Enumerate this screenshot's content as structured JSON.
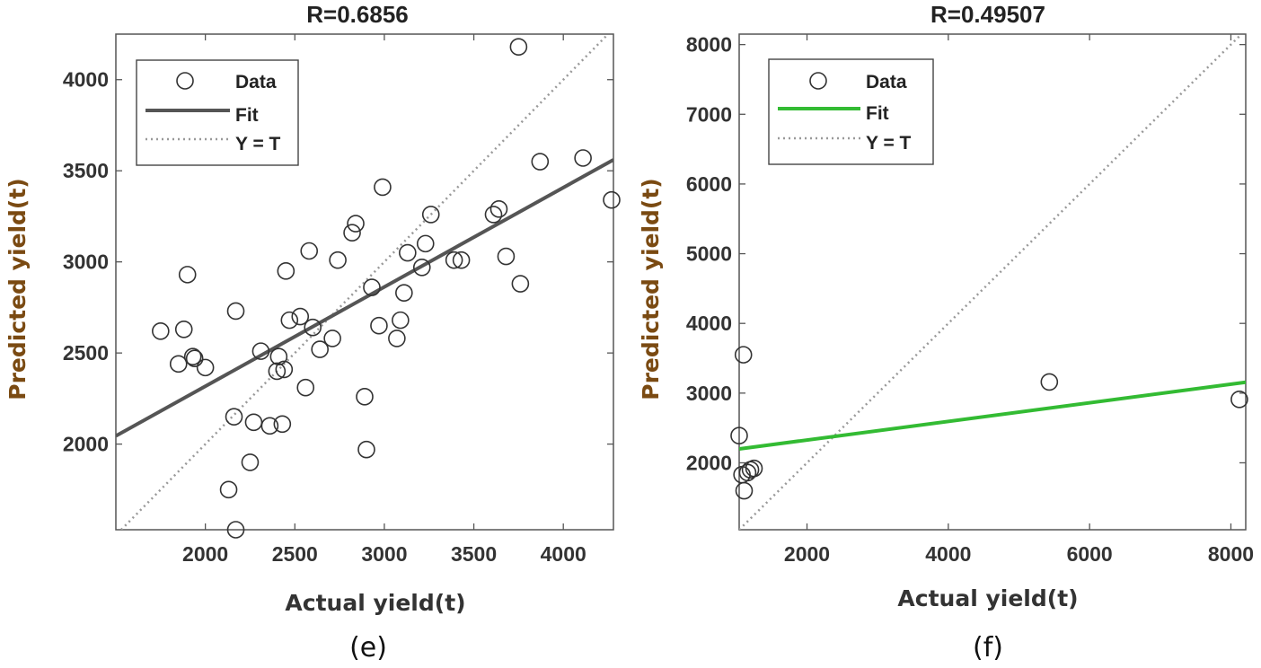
{
  "chart_data": [
    {
      "type": "scatter",
      "caption": "(e)",
      "title": "R=0.6856",
      "xlabel": "Actual yield(t)",
      "ylabel": "Predicted yield(t)",
      "xlim": [
        1500,
        4280
      ],
      "ylim": [
        1530,
        4250
      ],
      "xticks": [
        2000,
        2500,
        3000,
        3500,
        4000
      ],
      "yticks": [
        2000,
        2500,
        3000,
        3500,
        4000
      ],
      "legend": {
        "position": "top-left",
        "entries": [
          {
            "label": "Data",
            "style": "circle"
          },
          {
            "label": "Fit",
            "style": "solid-line"
          },
          {
            "label": "Y = T",
            "style": "dotted-line"
          }
        ]
      },
      "fit": {
        "slope": 0.5452,
        "intercept": 1227,
        "color": "#555555"
      },
      "identity": {
        "color": "#999999"
      },
      "points": [
        [
          1750,
          2620
        ],
        [
          1850,
          2440
        ],
        [
          1880,
          2630
        ],
        [
          1900,
          2930
        ],
        [
          1930,
          2480
        ],
        [
          1940,
          2470
        ],
        [
          2000,
          2420
        ],
        [
          2130,
          1750
        ],
        [
          2160,
          2150
        ],
        [
          2170,
          1530
        ],
        [
          2170,
          2730
        ],
        [
          2250,
          1900
        ],
        [
          2270,
          2120
        ],
        [
          2310,
          2510
        ],
        [
          2360,
          2100
        ],
        [
          2400,
          2400
        ],
        [
          2410,
          2480
        ],
        [
          2430,
          2110
        ],
        [
          2440,
          2410
        ],
        [
          2450,
          2950
        ],
        [
          2470,
          2680
        ],
        [
          2530,
          2700
        ],
        [
          2560,
          2310
        ],
        [
          2580,
          3060
        ],
        [
          2600,
          2640
        ],
        [
          2640,
          2520
        ],
        [
          2710,
          2580
        ],
        [
          2740,
          3010
        ],
        [
          2820,
          3160
        ],
        [
          2840,
          3210
        ],
        [
          2890,
          2260
        ],
        [
          2900,
          1970
        ],
        [
          2930,
          2860
        ],
        [
          2970,
          2650
        ],
        [
          2990,
          3410
        ],
        [
          3070,
          2580
        ],
        [
          3090,
          2680
        ],
        [
          3110,
          2830
        ],
        [
          3130,
          3050
        ],
        [
          3210,
          2970
        ],
        [
          3230,
          3100
        ],
        [
          3260,
          3260
        ],
        [
          3390,
          3010
        ],
        [
          3430,
          3010
        ],
        [
          3610,
          3260
        ],
        [
          3640,
          3290
        ],
        [
          3680,
          3030
        ],
        [
          3760,
          2880
        ],
        [
          3750,
          4180
        ],
        [
          3870,
          3550
        ],
        [
          4110,
          3570
        ],
        [
          4270,
          3340
        ]
      ]
    },
    {
      "type": "scatter",
      "caption": "(f)",
      "title": "R=0.49507",
      "xlabel": "Actual yield(t)",
      "ylabel": "Predicted yield(t)",
      "xlim": [
        1040,
        8210
      ],
      "ylim": [
        1040,
        8150
      ],
      "xticks": [
        2000,
        4000,
        6000,
        8000
      ],
      "yticks": [
        2000,
        3000,
        4000,
        5000,
        6000,
        7000,
        8000
      ],
      "legend": {
        "position": "top-left",
        "entries": [
          {
            "label": "Data",
            "style": "circle"
          },
          {
            "label": "Fit",
            "style": "solid-line"
          },
          {
            "label": "Y = T",
            "style": "dotted-line"
          }
        ]
      },
      "fit": {
        "slope": 0.1335,
        "intercept": 2060,
        "color": "#33bb33"
      },
      "identity": {
        "color": "#999999"
      },
      "points": [
        [
          1040,
          2390
        ],
        [
          1100,
          3550
        ],
        [
          1080,
          1830
        ],
        [
          1110,
          1600
        ],
        [
          1160,
          1860
        ],
        [
          1200,
          1900
        ],
        [
          1250,
          1920
        ],
        [
          5430,
          3160
        ],
        [
          8120,
          2910
        ]
      ]
    }
  ]
}
